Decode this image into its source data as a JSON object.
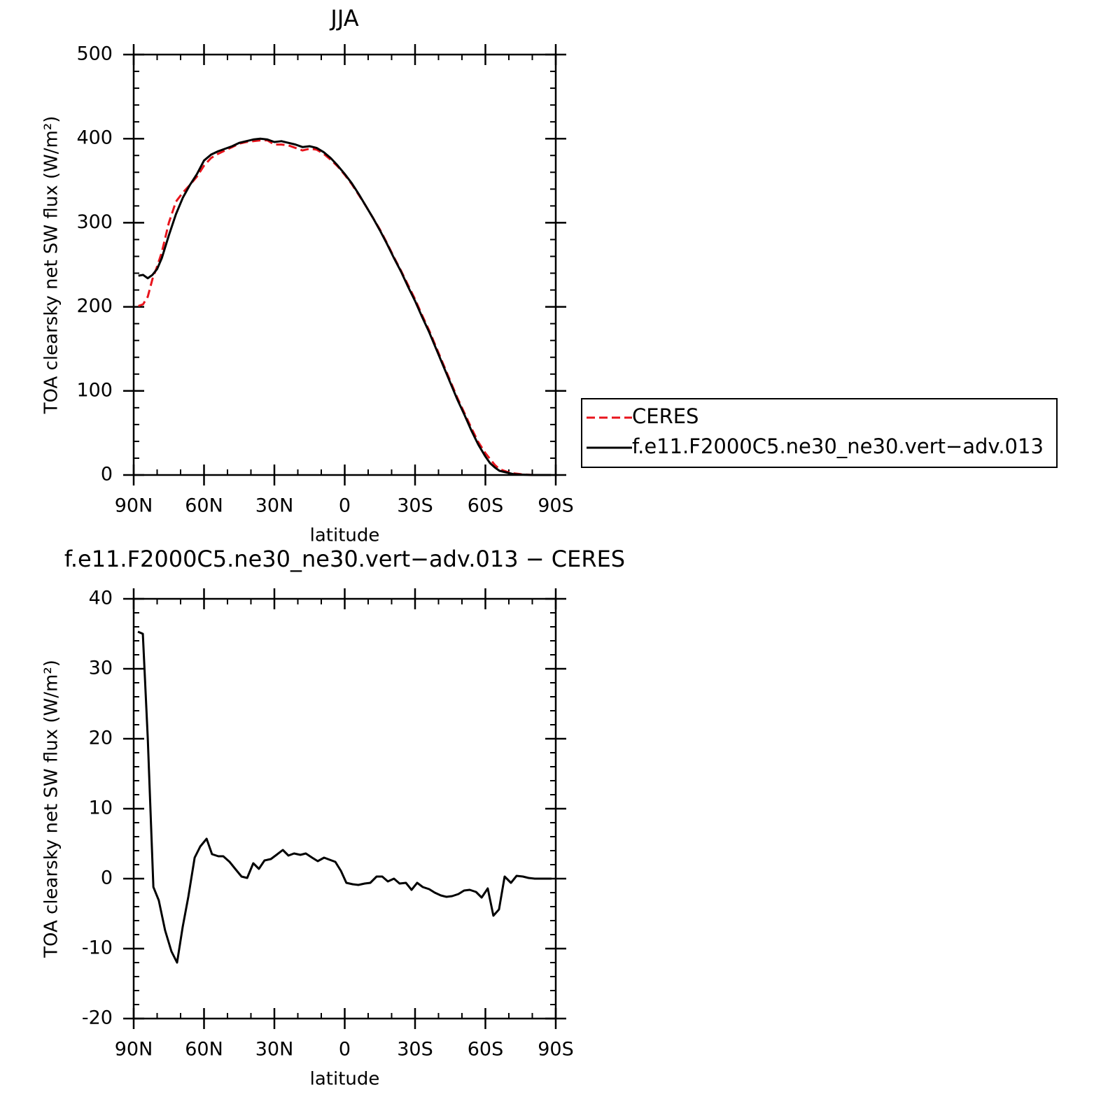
{
  "chart_data": [
    {
      "type": "line",
      "title": "JJA",
      "xlabel": "latitude",
      "ylabel": "TOA clearsky net SW flux (W/m²)",
      "xlim": [
        90,
        -90
      ],
      "xticks": [
        {
          "value": 90,
          "label": "90N"
        },
        {
          "value": 60,
          "label": "60N"
        },
        {
          "value": 30,
          "label": "30N"
        },
        0,
        {
          "value": -30,
          "label": "30S"
        },
        {
          "value": -60,
          "label": "60S"
        },
        {
          "value": -90,
          "label": "90S"
        }
      ],
      "minor_xticks": [
        80,
        70,
        50,
        40,
        20,
        10,
        -10,
        -20,
        -40,
        -50,
        -70,
        -80
      ],
      "ylim": [
        0,
        500
      ],
      "yticks": [
        0,
        100,
        200,
        300,
        400,
        500
      ],
      "minor_yticks": [
        20,
        40,
        60,
        80,
        120,
        140,
        160,
        180,
        220,
        240,
        260,
        280,
        320,
        340,
        360,
        380,
        420,
        440,
        460,
        480
      ],
      "legend": "right",
      "x": [
        88,
        86,
        84,
        82,
        80,
        78,
        75,
        72,
        69,
        66,
        63,
        60,
        57,
        54,
        51,
        48,
        45,
        42,
        39,
        36,
        33,
        30,
        27,
        24,
        21,
        18,
        15,
        12,
        9,
        6,
        3,
        0,
        -3,
        -6,
        -9,
        -12,
        -15,
        -18,
        -21,
        -24,
        -27,
        -30,
        -33,
        -36,
        -39,
        -42,
        -45,
        -48,
        -51,
        -54,
        -57,
        -60,
        -62,
        -64,
        -66,
        -69,
        -72,
        -75,
        -80,
        -85,
        -88
      ],
      "series": [
        {
          "name": "CERES",
          "color": "#e8141c",
          "dashed": true,
          "values": [
            201,
            203,
            212,
            233,
            248,
            265,
            300,
            325,
            336,
            345,
            355,
            368,
            377,
            382,
            386,
            390,
            394,
            396,
            397,
            398,
            398,
            393,
            393,
            392,
            389,
            386,
            388,
            387,
            382,
            375,
            367,
            357,
            346,
            333,
            320,
            306,
            292,
            276,
            259,
            243,
            226,
            209,
            190,
            172,
            152,
            132,
            112,
            92,
            74,
            56,
            39,
            26,
            19,
            12,
            7,
            4,
            2,
            1,
            0,
            0,
            0
          ]
        },
        {
          "name": "f.e11.F2000C5.ne30_ne30.vert−adv.013",
          "color": "#000000",
          "dashed": false,
          "values": [
            237,
            238,
            234,
            238,
            245,
            258,
            285,
            310,
            330,
            345,
            358,
            374,
            381,
            385,
            388,
            391,
            395,
            397,
            399,
            400,
            399,
            396,
            397,
            395,
            393,
            390,
            391,
            389,
            384,
            377,
            368,
            358,
            347,
            334,
            320,
            306,
            291,
            275,
            258,
            242,
            224,
            207,
            188,
            170,
            150,
            130,
            110,
            90,
            72,
            53,
            36,
            22,
            14,
            9,
            5,
            3,
            1,
            0.5,
            0,
            0,
            0
          ]
        }
      ]
    },
    {
      "type": "line",
      "title": "f.e11.F2000C5.ne30_ne30.vert−adv.013 − CERES",
      "xlabel": "latitude",
      "ylabel": "TOA clearsky net SW flux (W/m²)",
      "xlim": [
        90,
        -90
      ],
      "xticks": [
        {
          "value": 90,
          "label": "90N"
        },
        {
          "value": 60,
          "label": "60N"
        },
        {
          "value": 30,
          "label": "30N"
        },
        0,
        {
          "value": -30,
          "label": "30S"
        },
        {
          "value": -60,
          "label": "60S"
        },
        {
          "value": -90,
          "label": "90S"
        }
      ],
      "minor_xticks": [
        80,
        70,
        50,
        40,
        20,
        10,
        -10,
        -20,
        -40,
        -50,
        -70,
        -80
      ],
      "ylim": [
        -20,
        40
      ],
      "yticks": [
        -20,
        -10,
        0,
        10,
        20,
        30,
        40
      ],
      "minor_yticks": [
        -18,
        -16,
        -14,
        -12,
        -8,
        -6,
        -4,
        -2,
        2,
        4,
        6,
        8,
        12,
        14,
        16,
        18,
        22,
        24,
        26,
        28,
        32,
        34,
        36,
        38
      ],
      "color": "#000000",
      "x": [
        88.2,
        86.1,
        84,
        81.6,
        79.3,
        76.6,
        73.9,
        71.5,
        69.1,
        66.7,
        64,
        61.6,
        58.9,
        56.6,
        53.9,
        51.8,
        49.1,
        46.7,
        44,
        41.6,
        39,
        36.6,
        34.2,
        31.5,
        29.1,
        26.4,
        24,
        21.6,
        18.9,
        16.6,
        13.9,
        11.5,
        8.8,
        6.4,
        4,
        1.6,
        -0.7,
        -3.4,
        -5.8,
        -8.5,
        -10.9,
        -13.6,
        -16,
        -18.4,
        -21,
        -23.4,
        -26.1,
        -28.5,
        -30.9,
        -33.3,
        -36,
        -38.4,
        -41,
        -43.4,
        -45.8,
        -48.5,
        -50.9,
        -53.3,
        -56,
        -58.4,
        -61,
        -63.4,
        -65.8,
        -68.2,
        -70.9,
        -73.3,
        -76,
        -78.4,
        -81,
        -86,
        -88.2
      ],
      "values": [
        35.3,
        35,
        20.1,
        -1.2,
        -3.1,
        -7.4,
        -10.4,
        -12,
        -6.9,
        -2.6,
        3,
        4.6,
        5.7,
        3.5,
        3.2,
        3.2,
        2.4,
        1.4,
        0.3,
        0.1,
        2.2,
        1.4,
        2.6,
        2.8,
        3.4,
        4.1,
        3.3,
        3.6,
        3.4,
        3.6,
        3,
        2.5,
        3,
        2.7,
        2.4,
        1.1,
        -0.6,
        -0.8,
        -0.9,
        -0.7,
        -0.6,
        0.3,
        0.3,
        -0.4,
        0,
        -0.7,
        -0.6,
        -1.6,
        -0.6,
        -1.2,
        -1.5,
        -2,
        -2.4,
        -2.6,
        -2.5,
        -2.2,
        -1.7,
        -1.6,
        -1.9,
        -2.7,
        -1.4,
        -5.3,
        -4.4,
        0.3,
        -0.6,
        0.4,
        0.3,
        0.1,
        0,
        0,
        0
      ]
    }
  ]
}
